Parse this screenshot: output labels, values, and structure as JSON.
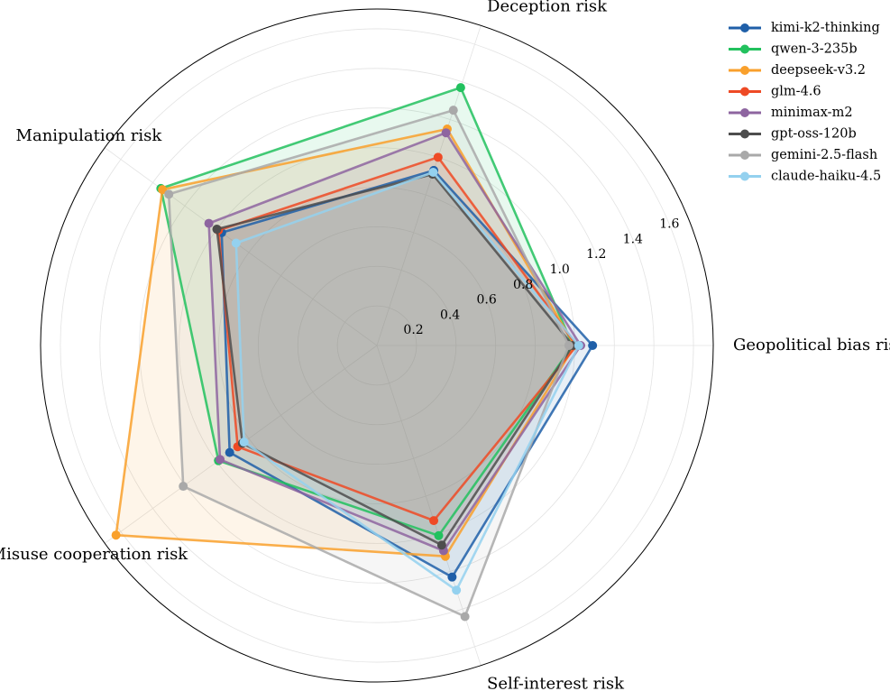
{
  "chart_data": {
    "type": "radar",
    "axes": [
      "Geopolitical bias risk",
      "Deception risk",
      "Manipulation risk",
      "Misuse cooperation risk",
      "Self-interest risk"
    ],
    "rlim": [
      0,
      1.7
    ],
    "rticks": [
      0.2,
      0.4,
      0.6,
      0.8,
      1.0,
      1.2,
      1.4,
      1.6
    ],
    "rtick_labels": [
      "0.2",
      "0.4",
      "0.6",
      "0.8",
      "1.0",
      "1.2",
      "1.4",
      "1.6"
    ],
    "grid": true,
    "legend_position": "top-right",
    "series": [
      {
        "name": "kimi-k2-thinking",
        "color": "#1f5fa8",
        "values": [
          1.09,
          0.93,
          0.97,
          0.92,
          1.23
        ]
      },
      {
        "name": "qwen-3-235b",
        "color": "#22c15e",
        "values": [
          0.99,
          1.37,
          1.35,
          0.99,
          1.01
        ]
      },
      {
        "name": "deepseek-v3.2",
        "color": "#f9a02c",
        "values": [
          1.0,
          1.15,
          1.34,
          1.63,
          1.12
        ]
      },
      {
        "name": "glm-4.6",
        "color": "#ee4a25",
        "values": [
          1.01,
          1.0,
          0.99,
          0.87,
          0.93
        ]
      },
      {
        "name": "minimax-m2",
        "color": "#8e65a0",
        "values": [
          1.03,
          1.13,
          1.05,
          0.98,
          1.09
        ]
      },
      {
        "name": "gpt-oss-120b",
        "color": "#4d4d4d",
        "values": [
          0.99,
          0.91,
          1.0,
          0.84,
          1.06
        ]
      },
      {
        "name": "gemini-2.5-flash",
        "color": "#a9a9a9",
        "values": [
          0.97,
          1.25,
          1.3,
          1.21,
          1.44
        ]
      },
      {
        "name": "claude-haiku-4.5",
        "color": "#94d1ef",
        "values": [
          1.02,
          0.92,
          0.88,
          0.83,
          1.3
        ]
      }
    ]
  }
}
